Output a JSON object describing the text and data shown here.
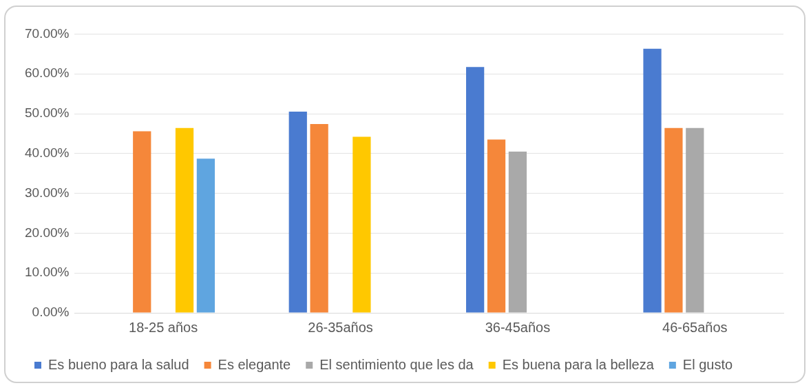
{
  "chart_data": {
    "type": "bar",
    "categories": [
      "18-25 años",
      "26-35años",
      "36-45años",
      "46-65años"
    ],
    "series": [
      {
        "name": "Es bueno para la salud",
        "color": "#4a7bd0",
        "values": [
          null,
          50.5,
          61.7,
          66.3
        ]
      },
      {
        "name": "Es elegante",
        "color": "#f5873a",
        "values": [
          45.6,
          47.4,
          43.5,
          46.4
        ]
      },
      {
        "name": "El sentimiento que les da",
        "color": "#a9a9a9",
        "values": [
          null,
          null,
          40.5,
          46.4
        ]
      },
      {
        "name": "Es buena para la belleza",
        "color": "#ffc800",
        "values": [
          46.4,
          44.2,
          null,
          null
        ]
      },
      {
        "name": "El gusto",
        "color": "#5fa5e0",
        "values": [
          38.7,
          null,
          null,
          null
        ]
      }
    ],
    "ylim": [
      0,
      70
    ],
    "yticks": [
      {
        "value": 0,
        "label": "0.00%"
      },
      {
        "value": 10,
        "label": "10.00%"
      },
      {
        "value": 20,
        "label": "20.00%"
      },
      {
        "value": 30,
        "label": "30.00%"
      },
      {
        "value": 40,
        "label": "40.00%"
      },
      {
        "value": 50,
        "label": "50.00%"
      },
      {
        "value": 60,
        "label": "60.00%"
      },
      {
        "value": 70,
        "label": "70.00%"
      }
    ],
    "grid": "y",
    "legend": "bottom"
  }
}
